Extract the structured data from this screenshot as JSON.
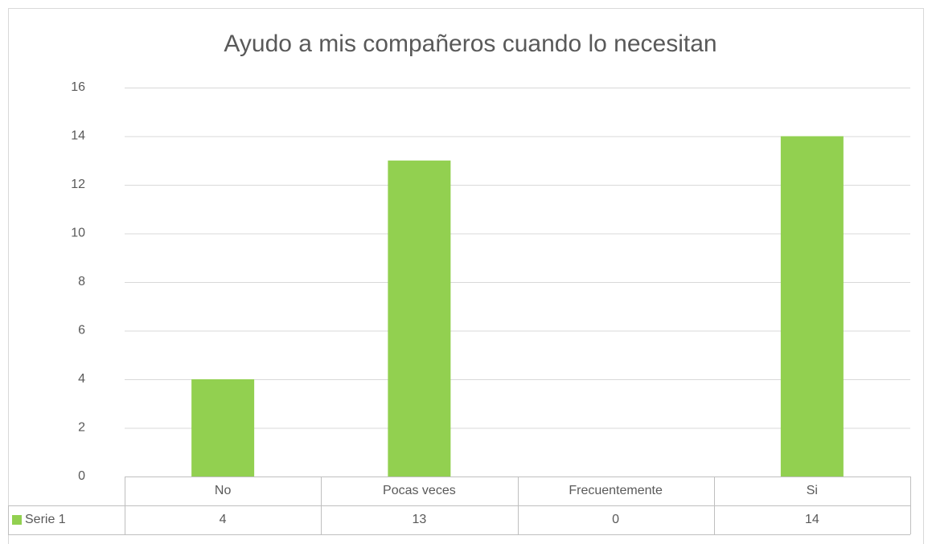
{
  "chart_data": {
    "type": "bar",
    "title": "Ayudo a mis compañeros cuando lo necesitan",
    "categories": [
      "No",
      "Pocas veces",
      "Frecuentemente",
      "Si"
    ],
    "series": [
      {
        "name": "Serie 1",
        "color": "#92d050",
        "values": [
          4,
          13,
          0,
          14
        ]
      }
    ],
    "ylim": [
      0,
      16
    ],
    "yticks": [
      0,
      2,
      4,
      6,
      8,
      10,
      12,
      14,
      16
    ],
    "grid": true,
    "data_table": true
  }
}
